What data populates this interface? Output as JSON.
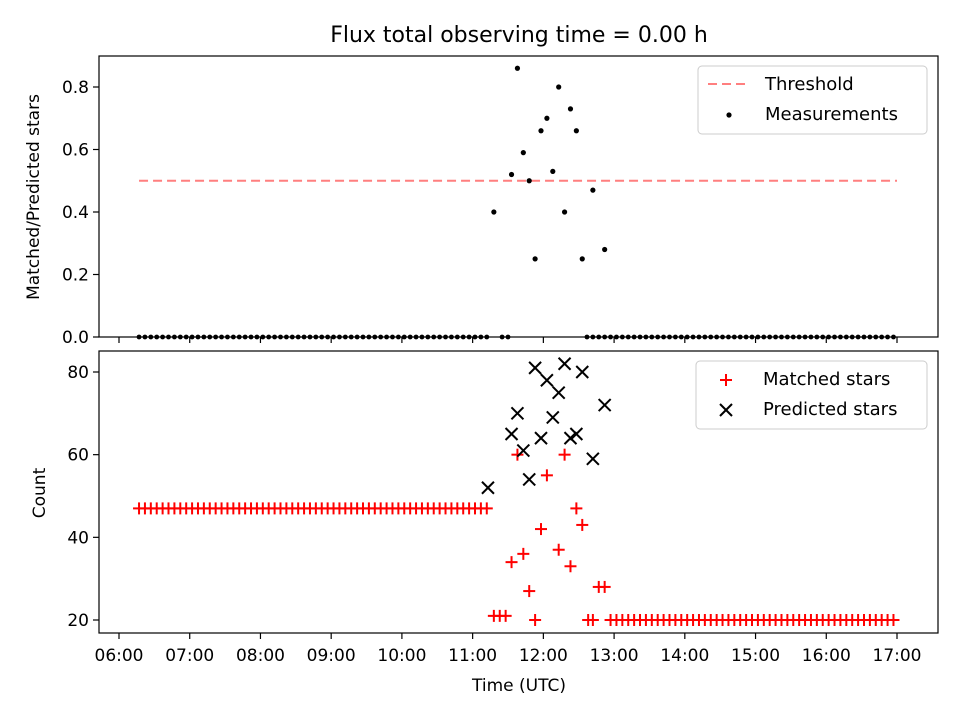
{
  "title": "Flux total observing time = 0.00 h",
  "colors": {
    "threshold": "#ff7f7f",
    "measurement": "#000000",
    "matched": "#ff0000",
    "predicted": "#000000"
  },
  "chart_data": [
    {
      "type": "scatter",
      "ylabel": "Matched/Predicted stars",
      "ylim": [
        0,
        0.9
      ],
      "yticks": [
        0.0,
        0.2,
        0.4,
        0.6,
        0.8
      ],
      "ytick_labels": [
        "0.0",
        "0.2",
        "0.4",
        "0.6",
        "0.8"
      ],
      "xlim": [
        "06:00",
        "17:00"
      ],
      "legend": {
        "placement": "top-right",
        "entries": [
          "Threshold",
          "Measurements"
        ]
      },
      "series": [
        {
          "name": "Threshold",
          "kind": "dashed-line",
          "x": [
            "06:17",
            "17:00"
          ],
          "y": [
            0.5,
            0.5
          ]
        },
        {
          "name": "Measurements",
          "kind": "dot",
          "baseline": {
            "y": 0.0,
            "ranges": [
              [
                "06:17",
                "11:13"
              ],
              [
                "11:25",
                "11:32"
              ],
              [
                "12:37",
                "17:00"
              ]
            ],
            "step_min": 5
          },
          "x": [
            "11:18",
            "11:33",
            "11:38",
            "11:43",
            "11:48",
            "11:53",
            "11:58",
            "12:03",
            "12:08",
            "12:13",
            "12:18",
            "12:23",
            "12:28",
            "12:33",
            "12:42",
            "12:52"
          ],
          "y": [
            0.4,
            0.52,
            0.86,
            0.59,
            0.5,
            0.25,
            0.66,
            0.7,
            0.53,
            0.8,
            0.4,
            0.73,
            0.66,
            0.25,
            0.47,
            0.28
          ]
        }
      ]
    },
    {
      "type": "scatter",
      "xlabel": "Time (UTC)",
      "ylabel": "Count",
      "ylim": [
        17,
        85
      ],
      "yticks": [
        20,
        40,
        60,
        80
      ],
      "ytick_labels": [
        "20",
        "40",
        "60",
        "80"
      ],
      "xticks": [
        "06:00",
        "07:00",
        "08:00",
        "09:00",
        "10:00",
        "11:00",
        "12:00",
        "13:00",
        "14:00",
        "15:00",
        "16:00",
        "17:00"
      ],
      "legend": {
        "placement": "top-right",
        "entries": [
          "Matched stars",
          "Predicted stars"
        ]
      },
      "series": [
        {
          "name": "Matched stars",
          "marker": "+",
          "constant_runs": [
            {
              "y": 47,
              "from": "06:17",
              "to": "11:13",
              "step_min": 5
            },
            {
              "y": 20,
              "from": "12:57",
              "to": "17:00",
              "step_min": 5
            }
          ],
          "x": [
            "11:18",
            "11:23",
            "11:28",
            "11:33",
            "11:38",
            "11:43",
            "11:48",
            "11:53",
            "11:58",
            "12:03",
            "12:13",
            "12:18",
            "12:23",
            "12:28",
            "12:33",
            "12:38",
            "12:42",
            "12:47",
            "12:52"
          ],
          "y": [
            21,
            21,
            21,
            34,
            60,
            36,
            27,
            20,
            42,
            55,
            37,
            60,
            33,
            47,
            43,
            20,
            20,
            28,
            28
          ]
        },
        {
          "name": "Predicted stars",
          "marker": "x",
          "x": [
            "11:13",
            "11:33",
            "11:38",
            "11:43",
            "11:48",
            "11:53",
            "11:58",
            "12:03",
            "12:08",
            "12:13",
            "12:18",
            "12:23",
            "12:28",
            "12:33",
            "12:37",
            "12:42",
            "12:52"
          ],
          "y": [
            52,
            65,
            70,
            61,
            54,
            81,
            64,
            78,
            69,
            75,
            82,
            64,
            65,
            80,
            null,
            59,
            72
          ]
        }
      ]
    }
  ]
}
